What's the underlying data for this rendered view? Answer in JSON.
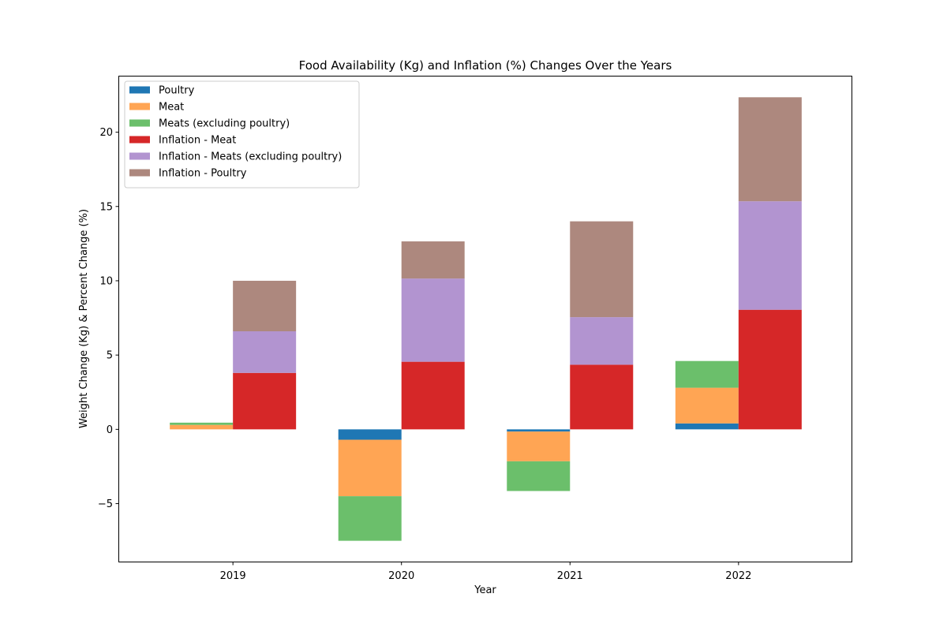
{
  "chart_data": {
    "type": "bar",
    "title": "Food Availability (Kg) and Inflation (%) Changes Over the Years",
    "xlabel": "Year",
    "ylabel": "Weight Change (Kg) & Percent Change (%)",
    "categories": [
      "2019",
      "2020",
      "2021",
      "2022"
    ],
    "ylim": [
      -8.9,
      23.8
    ],
    "yticks": [
      -5,
      0,
      5,
      10,
      15,
      20
    ],
    "ytick_labels": [
      "−5",
      "0",
      "5",
      "10",
      "15",
      "20"
    ],
    "legend_position": "top-left",
    "groups": [
      {
        "name": "weight",
        "series": [
          {
            "name": "Poultry",
            "color": "#1f77b4",
            "values": [
              0.0,
              -0.7,
              -0.15,
              0.4
            ]
          },
          {
            "name": "Meat",
            "color": "#ffa554",
            "values": [
              0.3,
              -3.8,
              -2.0,
              2.4
            ]
          },
          {
            "name": "Meats (excluding poultry)",
            "color": "#6bbf6b",
            "values": [
              0.15,
              -3.0,
              -2.0,
              1.8
            ]
          }
        ]
      },
      {
        "name": "inflation",
        "series": [
          {
            "name": "Inflation - Meat",
            "color": "#d62728",
            "values": [
              3.8,
              4.55,
              4.35,
              8.05
            ]
          },
          {
            "name": "Inflation - Meats (excluding poultry)",
            "color": "#b294d0",
            "values": [
              2.8,
              5.6,
              3.2,
              7.3
            ]
          },
          {
            "name": "Inflation - Poultry",
            "color": "#ad887e",
            "values": [
              3.4,
              2.5,
              6.45,
              7.0
            ]
          }
        ]
      }
    ]
  }
}
